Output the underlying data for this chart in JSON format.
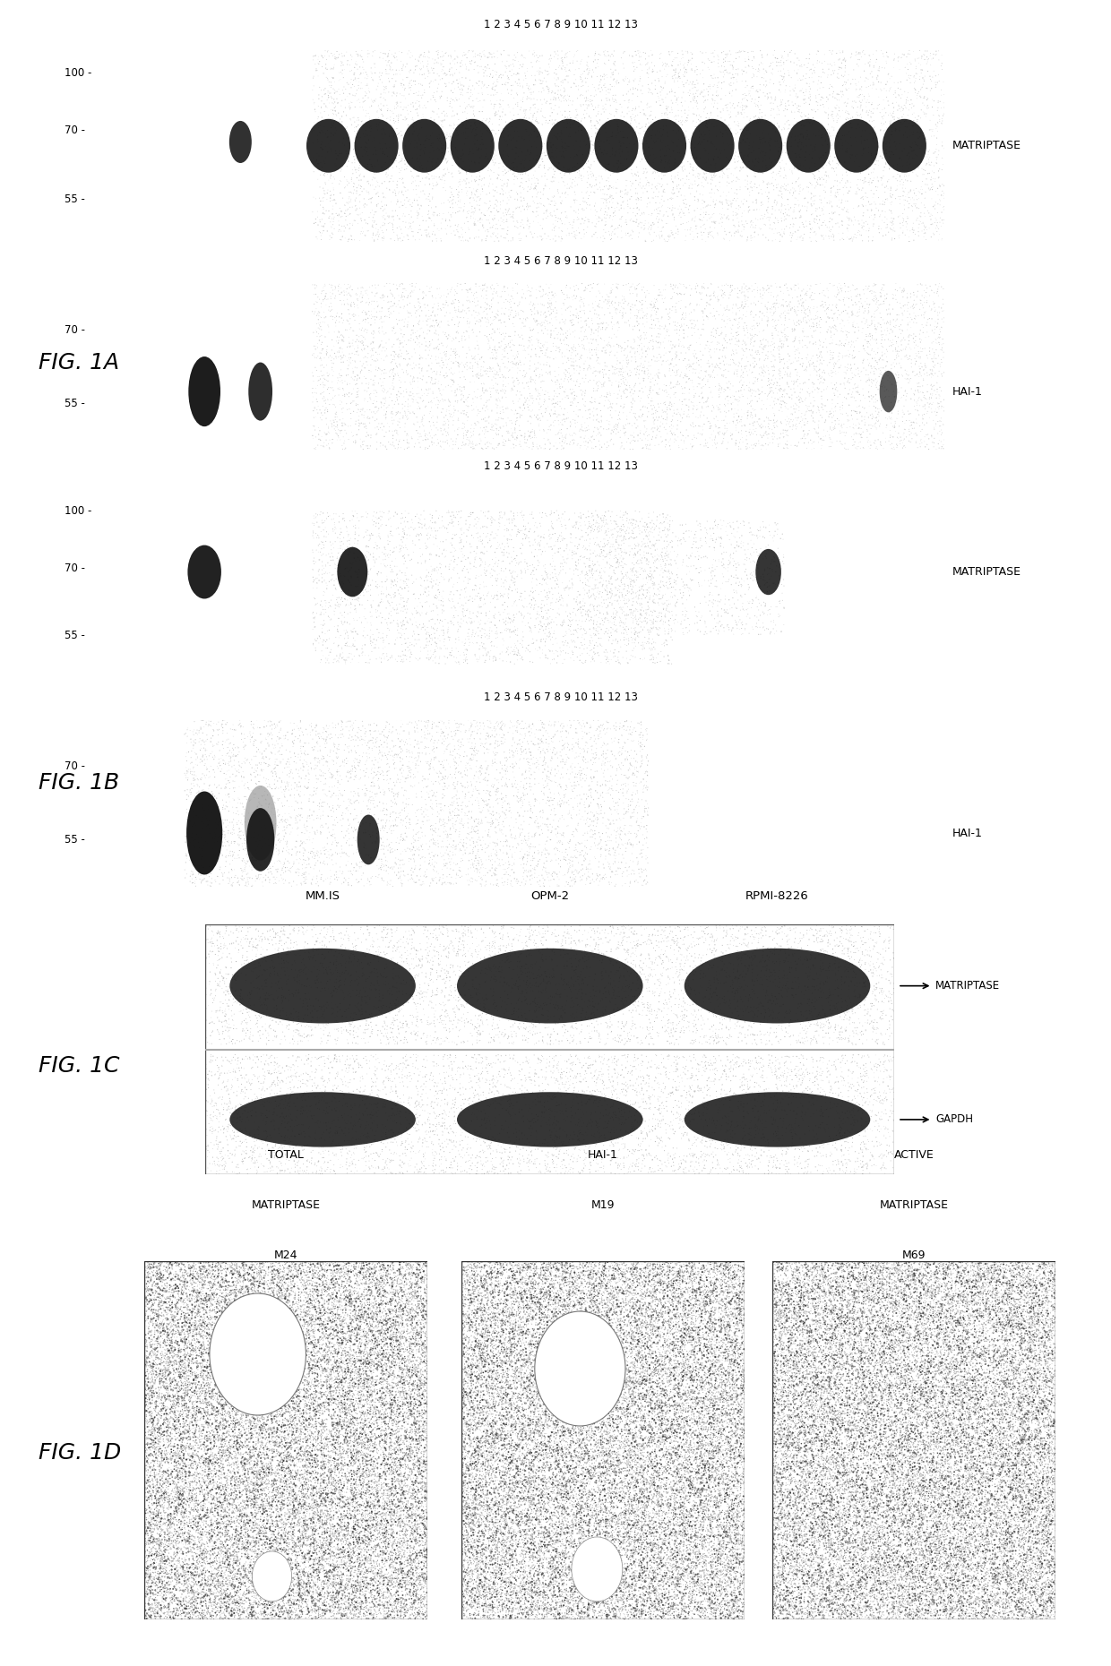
{
  "bg_color": "#ffffff",
  "fig_label_fontsize": 18,
  "lane_numbers": "1 2 3 4 5 6 7 8 9 10 11 12 13",
  "fig1a_label": "FIG. 1A",
  "fig1b_label": "FIG. 1B",
  "fig1c_label": "FIG. 1C",
  "fig1d_label": "FIG. 1D",
  "col_labels_1c": [
    "MM.IS",
    "OPM-2",
    "RPMI-8226"
  ],
  "band_labels_1c": [
    "MATRIPTASE",
    "GAPDH"
  ],
  "panel_labels_1d": [
    "TOTAL\nMATRIPTASE\nM24",
    "HAI-1\nM19",
    "ACTIVE\nMATRIPTASE\nM69"
  ]
}
